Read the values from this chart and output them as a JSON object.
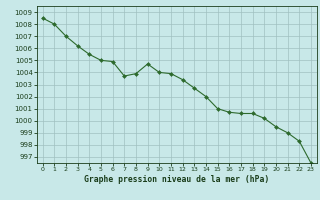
{
  "x": [
    0,
    1,
    2,
    3,
    4,
    5,
    6,
    7,
    8,
    9,
    10,
    11,
    12,
    13,
    14,
    15,
    16,
    17,
    18,
    19,
    20,
    21,
    22,
    23
  ],
  "y": [
    1008.5,
    1008.0,
    1007.0,
    1006.2,
    1005.5,
    1005.0,
    1004.9,
    1003.7,
    1003.9,
    1004.7,
    1004.0,
    1003.9,
    1003.4,
    1002.7,
    1002.0,
    1001.0,
    1000.7,
    1000.6,
    1000.6,
    1000.2,
    999.5,
    999.0,
    998.3,
    996.5
  ],
  "line_color": "#2d6a2d",
  "marker": "D",
  "marker_size": 2.0,
  "background_color": "#c8e8e8",
  "grid_color": "#a0c0c0",
  "xlabel": "Graphe pression niveau de la mer (hPa)",
  "xlabel_color": "#1a3d1a",
  "tick_color": "#1a3d1a",
  "ylim_min": 996.5,
  "ylim_max": 1009.5,
  "yticks": [
    997,
    998,
    999,
    1000,
    1001,
    1002,
    1003,
    1004,
    1005,
    1006,
    1007,
    1008,
    1009
  ],
  "xticks": [
    0,
    1,
    2,
    3,
    4,
    5,
    6,
    7,
    8,
    9,
    10,
    11,
    12,
    13,
    14,
    15,
    16,
    17,
    18,
    19,
    20,
    21,
    22,
    23
  ],
  "xtick_labels": [
    "0",
    "1",
    "2",
    "3",
    "4",
    "5",
    "6",
    "7",
    "8",
    "9",
    "10",
    "11",
    "12",
    "13",
    "14",
    "15",
    "16",
    "17",
    "18",
    "19",
    "20",
    "21",
    "22",
    "23"
  ]
}
